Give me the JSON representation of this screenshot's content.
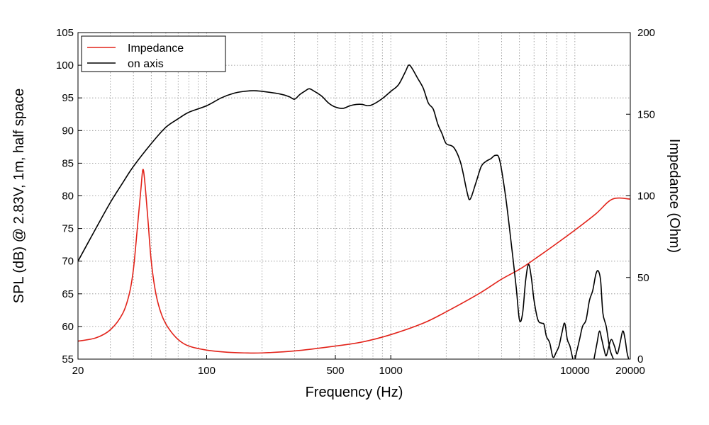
{
  "chart_data": {
    "type": "line",
    "xlabel": "Frequency (Hz)",
    "ylabel_left": "SPL (dB) @ 2.83V, 1m, half space",
    "ylabel_right": "Impedance (Ohm)",
    "x_scale": "log",
    "xlim": [
      20,
      20000
    ],
    "ylim_left": [
      55,
      105
    ],
    "ylim_right": [
      0,
      200
    ],
    "grid": true,
    "legend_placement": "top-left",
    "x_ticks": [
      {
        "value": 20,
        "label": "20"
      },
      {
        "value": 100,
        "label": "100"
      },
      {
        "value": 500,
        "label": "500"
      },
      {
        "value": 1000,
        "label": "1000"
      },
      {
        "value": 10000,
        "label": "10000"
      },
      {
        "value": 20000,
        "label": "20000"
      }
    ],
    "y_left_ticks": [
      "55",
      "60",
      "65",
      "70",
      "75",
      "80",
      "85",
      "90",
      "95",
      "100",
      "105"
    ],
    "y_right_ticks": [
      "0",
      "50",
      "100",
      "150",
      "200"
    ],
    "series": [
      {
        "name": "Impedance",
        "color": "#e2231a",
        "axis": "right",
        "points": [
          [
            20,
            11
          ],
          [
            25,
            13
          ],
          [
            30,
            18
          ],
          [
            35,
            28
          ],
          [
            38,
            40
          ],
          [
            40,
            55
          ],
          [
            42,
            80
          ],
          [
            44,
            105
          ],
          [
            45,
            116
          ],
          [
            46,
            110
          ],
          [
            48,
            85
          ],
          [
            50,
            60
          ],
          [
            53,
            40
          ],
          [
            57,
            27
          ],
          [
            62,
            19
          ],
          [
            70,
            12
          ],
          [
            80,
            8
          ],
          [
            100,
            5.5
          ],
          [
            130,
            4.2
          ],
          [
            160,
            3.8
          ],
          [
            200,
            3.8
          ],
          [
            300,
            5
          ],
          [
            500,
            8
          ],
          [
            700,
            10.5
          ],
          [
            1000,
            15
          ],
          [
            1500,
            22
          ],
          [
            2000,
            29
          ],
          [
            3000,
            40
          ],
          [
            4000,
            49
          ],
          [
            5000,
            55
          ],
          [
            6000,
            61
          ],
          [
            8000,
            71
          ],
          [
            10000,
            79
          ],
          [
            13000,
            89
          ],
          [
            16000,
            98
          ],
          [
            20000,
            98
          ]
        ]
      },
      {
        "name": "on axis",
        "color": "#000000",
        "axis": "left",
        "points": [
          [
            20,
            70
          ],
          [
            25,
            75
          ],
          [
            30,
            79
          ],
          [
            35,
            82
          ],
          [
            40,
            84.5
          ],
          [
            50,
            88
          ],
          [
            60,
            90.5
          ],
          [
            70,
            91.8
          ],
          [
            80,
            92.8
          ],
          [
            100,
            93.8
          ],
          [
            120,
            95
          ],
          [
            140,
            95.7
          ],
          [
            160,
            96
          ],
          [
            180,
            96.1
          ],
          [
            200,
            96
          ],
          [
            250,
            95.6
          ],
          [
            280,
            95.2
          ],
          [
            300,
            94.8
          ],
          [
            320,
            95.5
          ],
          [
            340,
            96
          ],
          [
            360,
            96.4
          ],
          [
            380,
            96.1
          ],
          [
            420,
            95.3
          ],
          [
            460,
            94.2
          ],
          [
            500,
            93.6
          ],
          [
            550,
            93.4
          ],
          [
            600,
            93.8
          ],
          [
            650,
            94
          ],
          [
            700,
            94
          ],
          [
            750,
            93.8
          ],
          [
            800,
            94
          ],
          [
            900,
            94.9
          ],
          [
            1000,
            96
          ],
          [
            1100,
            97
          ],
          [
            1200,
            99
          ],
          [
            1250,
            100
          ],
          [
            1300,
            99.6
          ],
          [
            1400,
            98
          ],
          [
            1500,
            96.5
          ],
          [
            1600,
            94.2
          ],
          [
            1700,
            93.3
          ],
          [
            1800,
            91
          ],
          [
            1900,
            89.5
          ],
          [
            2000,
            88
          ],
          [
            2200,
            87.4
          ],
          [
            2400,
            85
          ],
          [
            2600,
            80.5
          ],
          [
            2700,
            79.5
          ],
          [
            2900,
            82
          ],
          [
            3100,
            84.5
          ],
          [
            3300,
            85.3
          ],
          [
            3500,
            85.7
          ],
          [
            3700,
            86.2
          ],
          [
            3900,
            85.5
          ],
          [
            4200,
            80
          ],
          [
            4500,
            73
          ],
          [
            4800,
            66
          ],
          [
            5000,
            61
          ],
          [
            5200,
            62
          ],
          [
            5400,
            67
          ],
          [
            5600,
            69.5
          ],
          [
            5800,
            67.5
          ],
          [
            6000,
            64
          ],
          [
            6300,
            61
          ],
          [
            6600,
            60.5
          ],
          [
            6800,
            60.3
          ],
          [
            7000,
            58.5
          ],
          [
            7300,
            57.5
          ],
          [
            7600,
            55.3
          ],
          [
            7900,
            56
          ],
          [
            8200,
            57
          ],
          [
            8500,
            59
          ],
          [
            8800,
            60.5
          ],
          [
            9100,
            58
          ],
          [
            9400,
            57
          ],
          [
            9700,
            55.3
          ],
          [
            9900,
            54.5
          ],
          [
            10200,
            56
          ],
          [
            10600,
            58
          ],
          [
            11000,
            60
          ],
          [
            11500,
            61
          ],
          [
            12000,
            64
          ],
          [
            12500,
            65.5
          ],
          [
            13000,
            68
          ],
          [
            13400,
            68.5
          ],
          [
            13800,
            67
          ],
          [
            14200,
            62
          ],
          [
            14800,
            60
          ],
          [
            15500,
            56.5
          ],
          [
            16200,
            55
          ]
        ]
      },
      {
        "name": "",
        "color": "#000000",
        "axis": "left",
        "points": [
          [
            12700,
            55
          ],
          [
            13200,
            57.5
          ],
          [
            13600,
            59.3
          ],
          [
            14000,
            58
          ],
          [
            14400,
            56.5
          ],
          [
            14800,
            55.5
          ],
          [
            15300,
            57
          ],
          [
            15800,
            58
          ],
          [
            16400,
            57
          ],
          [
            17000,
            55.8
          ],
          [
            17600,
            57.5
          ],
          [
            18200,
            59.3
          ],
          [
            18700,
            58.2
          ],
          [
            19200,
            56
          ],
          [
            19600,
            55
          ]
        ]
      }
    ]
  }
}
